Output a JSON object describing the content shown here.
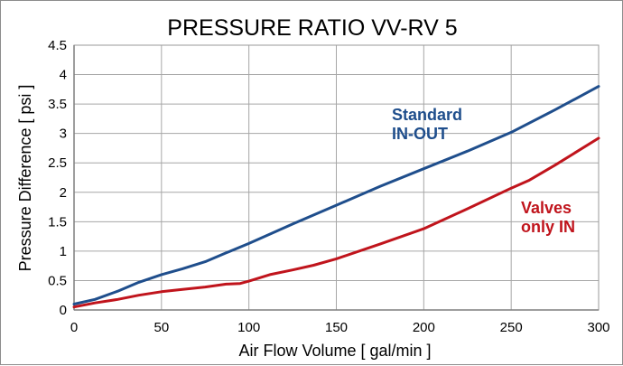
{
  "chart_data": {
    "type": "line",
    "title": "PRESSURE RATIO VV-RV 5",
    "xlabel": "Air Flow Volume [ gal/min ]",
    "ylabel": "Pressure Difference [ psi ]",
    "xlim": [
      0,
      300
    ],
    "ylim": [
      0,
      4.5
    ],
    "xticks": [
      0,
      50,
      100,
      150,
      200,
      250,
      300
    ],
    "yticks": [
      0,
      0.5,
      1,
      1.5,
      2,
      2.5,
      3,
      3.5,
      4,
      4.5
    ],
    "xtick_labels": [
      "0",
      "50",
      "100",
      "150",
      "200",
      "250",
      "300"
    ],
    "ytick_labels": [
      "0",
      "0.5",
      "1",
      "1.5",
      "2",
      "2.5",
      "3",
      "3.5",
      "4",
      "4.5"
    ],
    "grid": true,
    "series": [
      {
        "name": "Standard IN-OUT",
        "color": "#1f4e8c",
        "x": [
          0,
          12,
          25,
          37,
          50,
          62,
          75,
          87,
          100,
          125,
          150,
          175,
          200,
          225,
          250,
          275,
          300
        ],
        "y": [
          0.1,
          0.18,
          0.32,
          0.47,
          0.6,
          0.7,
          0.82,
          0.97,
          1.13,
          1.46,
          1.78,
          2.1,
          2.4,
          2.7,
          3.02,
          3.4,
          3.8
        ]
      },
      {
        "name": "Valves only IN",
        "color": "#c0141c",
        "x": [
          0,
          12,
          25,
          37,
          50,
          62,
          75,
          87,
          95,
          100,
          112,
          125,
          137,
          150,
          175,
          200,
          225,
          250,
          260,
          275,
          300
        ],
        "y": [
          0.05,
          0.12,
          0.18,
          0.25,
          0.31,
          0.35,
          0.39,
          0.44,
          0.45,
          0.49,
          0.6,
          0.68,
          0.76,
          0.87,
          1.12,
          1.38,
          1.72,
          2.07,
          2.2,
          2.46,
          2.92
        ]
      }
    ],
    "annotations": [
      {
        "lines": [
          "Standard",
          "IN-OUT"
        ],
        "color": "#1f4e8c"
      },
      {
        "lines": [
          "Valves",
          "only IN"
        ],
        "color": "#c0141c"
      }
    ]
  }
}
